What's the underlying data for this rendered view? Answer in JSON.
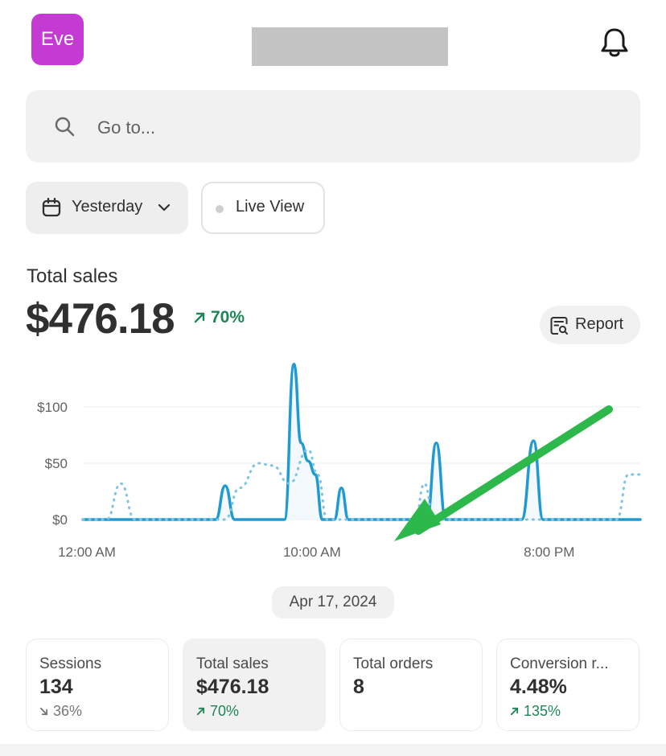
{
  "header": {
    "store_initials": "Eve"
  },
  "search": {
    "placeholder": "Go to..."
  },
  "filters": {
    "date_range": "Yesterday",
    "live_view": "Live View"
  },
  "summary": {
    "title": "Total sales",
    "value": "$476.18",
    "change": "70%",
    "change_direction": "up",
    "report_label": "Report"
  },
  "chart_data": {
    "type": "line",
    "x_ticks": [
      "12:00 AM",
      "10:00 AM",
      "8:00 PM"
    ],
    "y_ticks": [
      "$0",
      "$50",
      "$100"
    ],
    "ylim": [
      0,
      140
    ],
    "grid": true,
    "series": [
      {
        "style": "solid",
        "color": "#1f9bd1",
        "points": [
          [
            0,
            0
          ],
          [
            5.6,
            0
          ],
          [
            6,
            30
          ],
          [
            6.4,
            0
          ],
          [
            8.5,
            0
          ],
          [
            8.9,
            138
          ],
          [
            9.2,
            68
          ],
          [
            9.5,
            52
          ],
          [
            9.8,
            40
          ],
          [
            10.1,
            0
          ],
          [
            10.6,
            0
          ],
          [
            10.9,
            28
          ],
          [
            11.2,
            0
          ],
          [
            14.5,
            0
          ],
          [
            14.9,
            68
          ],
          [
            15.3,
            0
          ],
          [
            18.5,
            0
          ],
          [
            19.0,
            70
          ],
          [
            19.4,
            0
          ],
          [
            23.5,
            0
          ]
        ]
      },
      {
        "style": "dotted",
        "color": "#7cc4e4",
        "points": [
          [
            0,
            0
          ],
          [
            1.0,
            0
          ],
          [
            1.6,
            32
          ],
          [
            2.2,
            0
          ],
          [
            5.3,
            0
          ],
          [
            6.0,
            0
          ],
          [
            6.6,
            28
          ],
          [
            7.4,
            50
          ],
          [
            8.0,
            48
          ],
          [
            8.7,
            32
          ],
          [
            9.5,
            62
          ],
          [
            9.9,
            40
          ],
          [
            10.3,
            0
          ],
          [
            14.0,
            0
          ],
          [
            14.4,
            32
          ],
          [
            14.8,
            0
          ],
          [
            22.5,
            0
          ],
          [
            23.0,
            40
          ],
          [
            23.5,
            40
          ]
        ]
      }
    ]
  },
  "chart_date": "Apr 17, 2024",
  "annotation_color": "#2db84b",
  "cards": [
    {
      "label": "Sessions",
      "value": "134",
      "change": "36%",
      "direction": "down"
    },
    {
      "label": "Total sales",
      "value": "$476.18",
      "change": "70%",
      "direction": "up"
    },
    {
      "label": "Total orders",
      "value": "8",
      "change": "",
      "direction": "none"
    },
    {
      "label": "Conversion r...",
      "value": "4.48%",
      "change": "135%",
      "direction": "up"
    }
  ],
  "colors": {
    "accent_avatar": "#c53ad3",
    "positive": "#1f8557",
    "line": "#1f9bd1"
  }
}
